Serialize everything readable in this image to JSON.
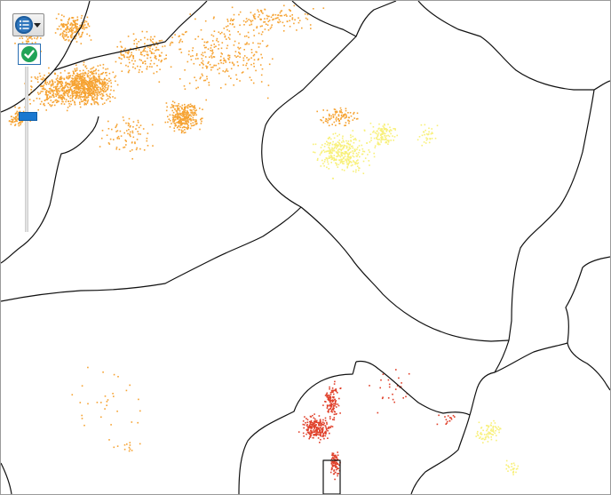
{
  "map": {
    "boundary_color": "#111111",
    "layers": [
      {
        "id": "density-orange",
        "color": "#f6a333"
      },
      {
        "id": "density-yellow",
        "color": "#f8f07a"
      },
      {
        "id": "density-red",
        "color": "#e0402a"
      }
    ]
  },
  "controls": {
    "layer_list": {
      "icon": "layer-list-icon",
      "caret_icon": "chevron-down-icon",
      "accent": "#2f76bd"
    },
    "confirm": {
      "icon": "check-icon",
      "color": "#21a357"
    },
    "slider": {
      "value_fraction": 0.3,
      "thumb_color": "#1a78d0"
    }
  }
}
